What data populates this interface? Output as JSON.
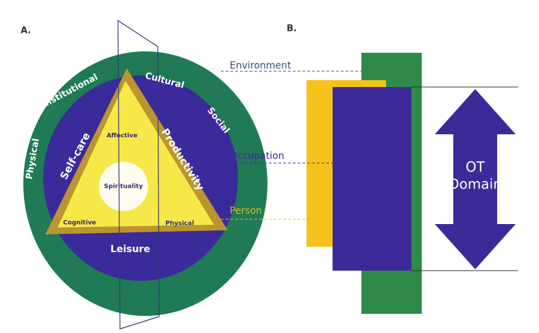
{
  "panel_a": {
    "label": "A.",
    "environment": [
      "Physical",
      "Institutional",
      "Cultural",
      "Social"
    ],
    "occupation": [
      "Self-care",
      "Productivity",
      "Leisure"
    ],
    "person": [
      "Affective",
      "Cognitive",
      "Physical"
    ],
    "center": "Spirituality"
  },
  "panel_b": {
    "label": "B.",
    "layers": [
      "Environment",
      "Occupation",
      "Person"
    ],
    "domain": [
      "OT",
      "Domain"
    ]
  }
}
